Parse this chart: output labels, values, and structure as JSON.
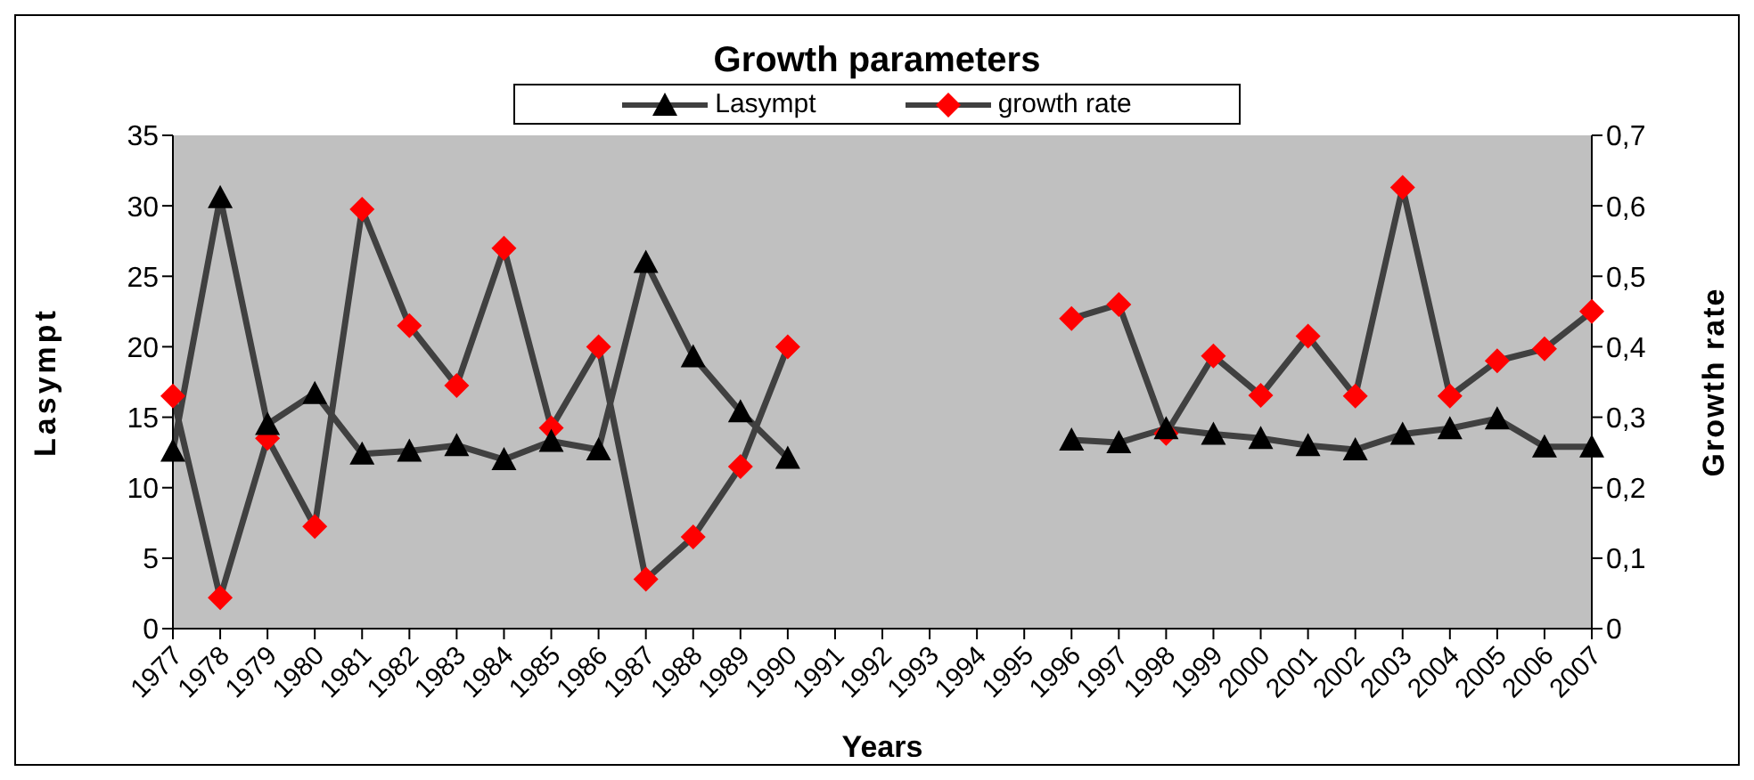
{
  "chart_data": {
    "type": "line",
    "title": "Growth parameters",
    "xlabel": "Years",
    "ylabel": "Lasympt",
    "y2label": "Growth rate",
    "categories": [
      "1977",
      "1978",
      "1979",
      "1980",
      "1981",
      "1982",
      "1983",
      "1984",
      "1985",
      "1986",
      "1987",
      "1988",
      "1989",
      "1990",
      "1991",
      "1992",
      "1993",
      "1994",
      "1995",
      "1996",
      "1997",
      "1998",
      "1999",
      "2000",
      "2001",
      "2002",
      "2003",
      "2004",
      "2005",
      "2006",
      "2007"
    ],
    "series": [
      {
        "name": "Lasympt",
        "color": "#000000",
        "marker": "triangle",
        "values": [
          12.6,
          30.6,
          14.5,
          16.7,
          12.4,
          12.6,
          13.0,
          12.0,
          13.3,
          12.7,
          26.0,
          19.3,
          15.4,
          12.1,
          null,
          null,
          null,
          null,
          null,
          13.4,
          13.2,
          14.2,
          13.8,
          13.5,
          13.0,
          12.7,
          13.8,
          14.2,
          14.9,
          12.9,
          12.9
        ]
      },
      {
        "name": "growth rate",
        "color": "#ff0000",
        "marker": "diamond",
        "axis": "y2",
        "values": [
          0.33,
          0.044,
          0.27,
          0.145,
          0.595,
          0.43,
          0.345,
          0.54,
          0.285,
          0.4,
          0.07,
          0.13,
          0.23,
          0.4,
          null,
          null,
          null,
          null,
          null,
          0.44,
          0.46,
          0.277,
          0.387,
          0.331,
          0.415,
          0.33,
          0.626,
          0.33,
          0.38,
          0.397,
          0.45
        ]
      }
    ],
    "ylim": [
      0,
      35
    ],
    "yticks": [
      0,
      5,
      10,
      15,
      20,
      25,
      30,
      35
    ],
    "y2lim": [
      0,
      0.7
    ],
    "y2ticks": [
      0,
      {
        "value": 0.1,
        "label": "0,1"
      },
      {
        "value": 0.2,
        "label": "0,2"
      },
      {
        "value": 0.3,
        "label": "0,3"
      },
      {
        "value": 0.4,
        "label": "0,4"
      },
      {
        "value": 0.5,
        "label": "0,5"
      },
      {
        "value": 0.6,
        "label": "0,6"
      },
      {
        "value": 0.7,
        "label": "0,7"
      }
    ],
    "grid": false,
    "legend": "top",
    "line_style": "solid"
  }
}
